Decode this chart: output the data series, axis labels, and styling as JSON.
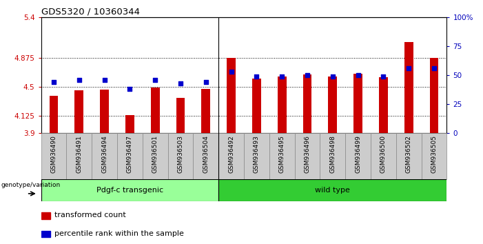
{
  "title": "GDS5320 / 10360344",
  "samples": [
    "GSM936490",
    "GSM936491",
    "GSM936494",
    "GSM936497",
    "GSM936501",
    "GSM936503",
    "GSM936504",
    "GSM936492",
    "GSM936493",
    "GSM936495",
    "GSM936496",
    "GSM936498",
    "GSM936499",
    "GSM936500",
    "GSM936502",
    "GSM936505"
  ],
  "transformed_count": [
    4.38,
    4.45,
    4.46,
    4.13,
    4.49,
    4.35,
    4.47,
    4.875,
    4.6,
    4.635,
    4.655,
    4.635,
    4.67,
    4.62,
    5.08,
    4.875
  ],
  "percentile_rank": [
    44,
    46,
    46,
    38,
    46,
    43,
    44,
    53,
    49,
    49,
    50,
    49,
    50,
    49,
    56,
    56
  ],
  "ymin": 3.9,
  "ymax": 5.4,
  "yticks": [
    3.9,
    4.125,
    4.5,
    4.875,
    5.4
  ],
  "ytick_labels": [
    "3.9",
    "4.125",
    "4.5",
    "4.875",
    "5.4"
  ],
  "right_yticks": [
    0,
    25,
    50,
    75,
    100
  ],
  "right_ytick_labels": [
    "0",
    "25",
    "50",
    "75",
    "100%"
  ],
  "bar_color": "#cc0000",
  "blue_color": "#0000cc",
  "bar_bottom": 3.9,
  "group1_label": "Pdgf-c transgenic",
  "group2_label": "wild type",
  "group1_count": 7,
  "group2_count": 9,
  "legend_label1": "transformed count",
  "legend_label2": "percentile rank within the sample",
  "genotype_label": "genotype/variation",
  "group1_bg": "#99ff99",
  "group2_bg": "#33cc33",
  "plot_bg": "#ffffff",
  "tick_label_color_left": "#cc0000",
  "tick_label_color_right": "#0000bb",
  "title_color": "#000000",
  "bar_width": 0.35,
  "xtick_bg": "#cccccc",
  "xtick_border": "#888888"
}
